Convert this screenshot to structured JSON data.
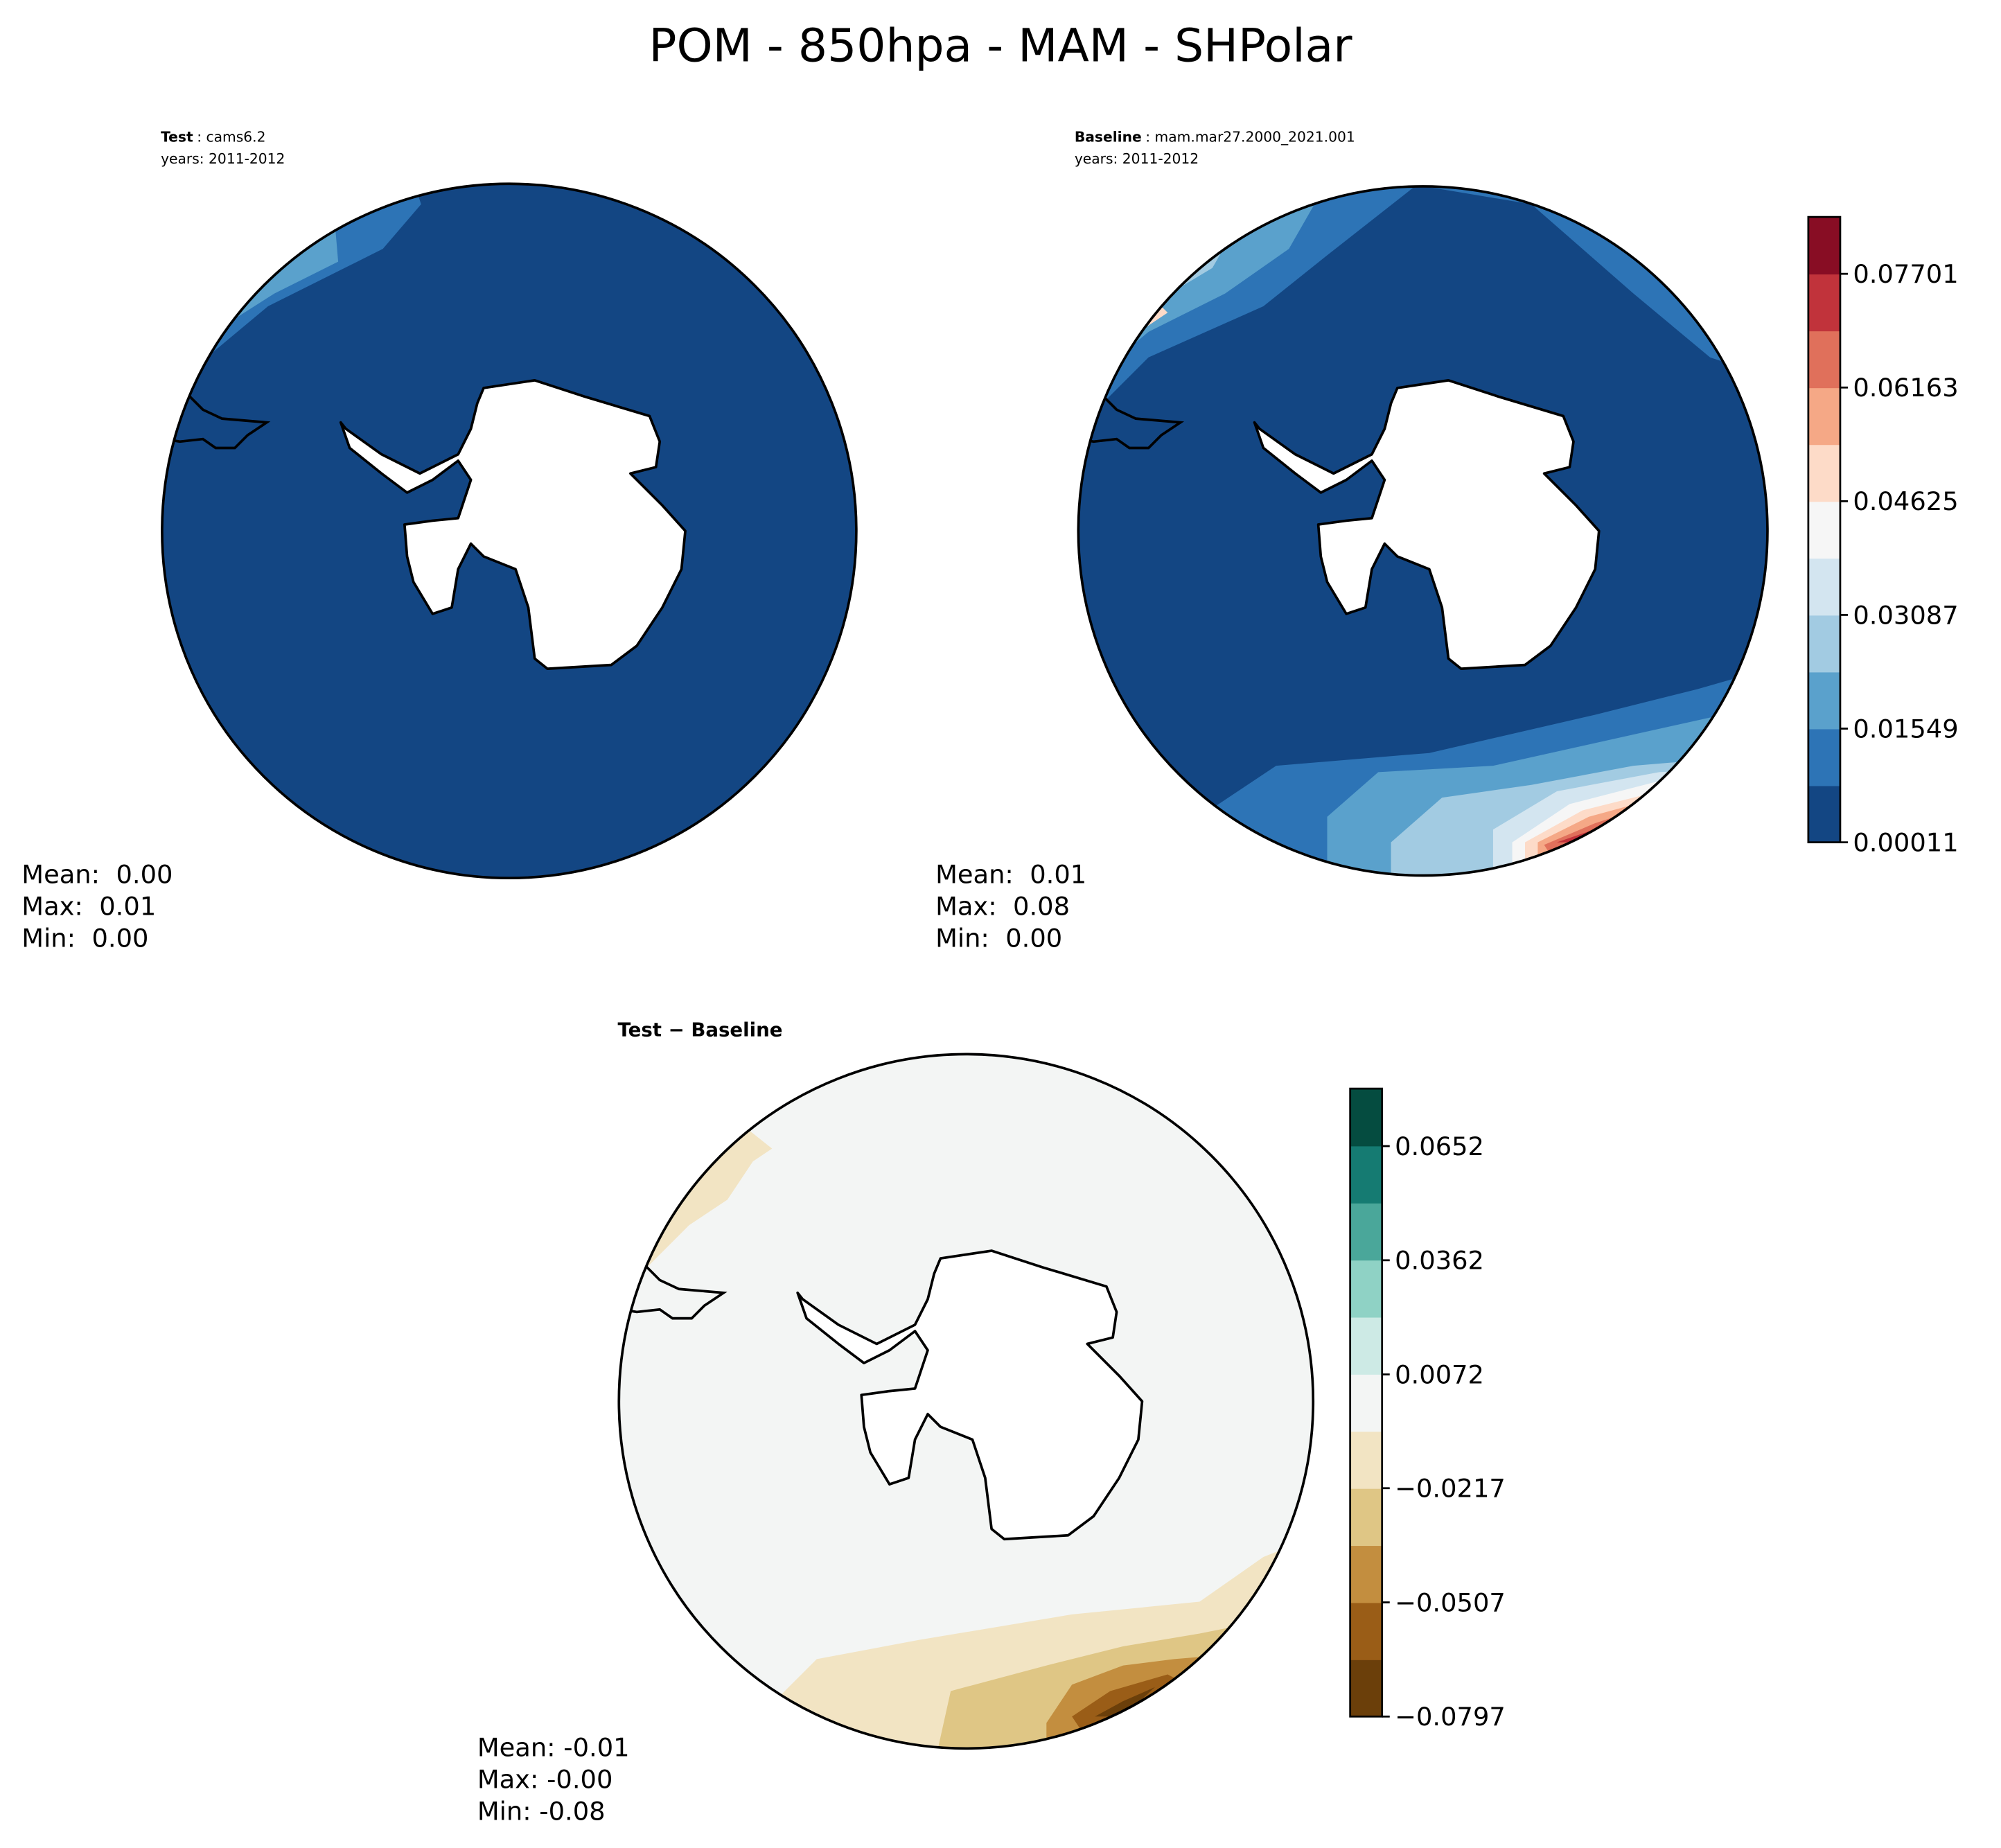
{
  "title": "POM - 850hpa - MAM - SHPolar",
  "panels": [
    {
      "label": "Test",
      "name": ": cams6.2",
      "years": "years: 2011-2012",
      "stats": [
        "Mean:  0.00",
        "Max:  0.01",
        "Min:  0.00"
      ]
    },
    {
      "label": "Baseline",
      "name": ": mam.mar27.2000_2021.001",
      "years": "years: 2011-2012",
      "stats": [
        "Mean:  0.01",
        "Max:  0.08",
        "Min:  0.00"
      ]
    },
    {
      "label": "Test − Baseline",
      "stats": [
        "Mean: -0.01",
        "Max: -0.00",
        "Min: -0.08"
      ]
    }
  ],
  "colorbars": [
    {
      "lim": [
        0.00011,
        0.0847
      ],
      "ticks": [
        0.00011,
        0.01549,
        0.03087,
        0.04625,
        0.06163,
        0.07701
      ],
      "colors": [
        "#134683",
        "#2d74b6",
        "#5aa1cc",
        "#a2cbe2",
        "#d3e5f0",
        "#f6f6f6",
        "#fddbc8",
        "#f5a886",
        "#e0705b",
        "#c1333b",
        "#880d24"
      ]
    },
    {
      "lim": [
        -0.0797,
        0.0798
      ],
      "ticks": [
        {
          "value": -0.0797,
          "label": "−0.0797"
        },
        {
          "value": -0.0507,
          "label": "−0.0507"
        },
        {
          "value": -0.0217,
          "label": "−0.0217"
        },
        0.0072,
        0.0362,
        0.0652
      ],
      "colors": [
        "#6b3f0a",
        "#9a5d17",
        "#c38e3f",
        "#dfc685",
        "#f2e4c3",
        "#f3f5f4",
        "#cdeae5",
        "#8fd2c5",
        "#4aa79a",
        "#157b72",
        "#054c40"
      ]
    }
  ]
}
